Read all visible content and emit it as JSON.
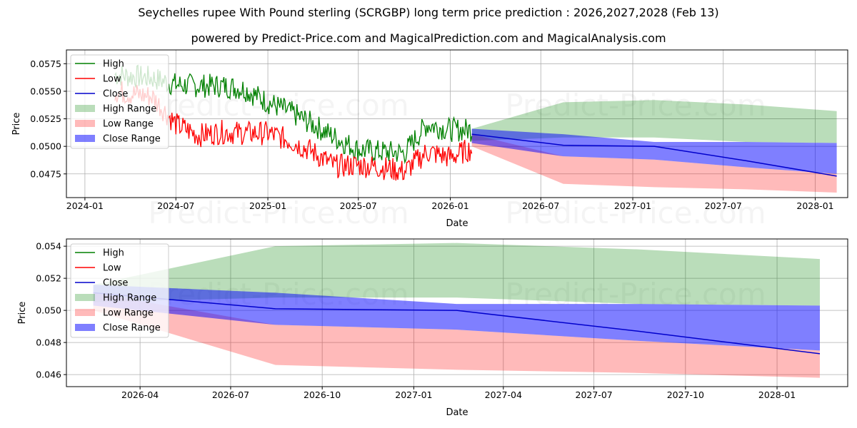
{
  "title": "Seychelles rupee With Pound sterling (SCRGBP) long term price prediction : 2026,2027,2028 (Feb 13)",
  "subtitle": "powered by Predict-Price.com and MagicalPrediction.com and MagicalAnalysis.com",
  "watermark": "Predict-Price.com",
  "colors": {
    "high": "#008000",
    "low": "#ff0000",
    "close": "#0000cc",
    "high_range": "#008000",
    "low_range": "#ff0000",
    "close_range": "#0000ff"
  },
  "chart_data": [
    {
      "type": "line",
      "title": "",
      "xlabel": "Date",
      "ylabel": "Price",
      "xlim": [
        "2023-11-25",
        "2028-03-06"
      ],
      "ylim": [
        0.04535,
        0.05875
      ],
      "x_ticks": [
        "2024-01",
        "2024-07",
        "2025-01",
        "2025-07",
        "2026-01",
        "2026-07",
        "2027-01",
        "2027-07",
        "2028-01"
      ],
      "y_ticks": [
        0.0475,
        0.05,
        0.0525,
        0.055,
        0.0575
      ],
      "y_tick_labels": [
        "0.0475",
        "0.0500",
        "0.0525",
        "0.0550",
        "0.0575"
      ],
      "grid": true,
      "legend_position": "top-left",
      "legend": [
        "High",
        "Low",
        "Close",
        "High Range",
        "Low Range",
        "Close Range"
      ],
      "history": {
        "dates": [
          "2024-03-01",
          "2024-05-15",
          "2024-07-01",
          "2024-08-15",
          "2024-10-01",
          "2024-11-15",
          "2025-01-01",
          "2025-02-15",
          "2025-04-01",
          "2025-05-15",
          "2025-07-01",
          "2025-08-15",
          "2025-10-01",
          "2025-11-15",
          "2026-01-01",
          "2026-02-13"
        ],
        "high": [
          0.0565,
          0.0562,
          0.0556,
          0.0555,
          0.0555,
          0.0552,
          0.054,
          0.0531,
          0.052,
          0.0508,
          0.0497,
          0.0495,
          0.0494,
          0.052,
          0.0515,
          0.0515
        ],
        "low": [
          0.055,
          0.0545,
          0.052,
          0.051,
          0.0513,
          0.0512,
          0.0512,
          0.0505,
          0.0495,
          0.0482,
          0.0483,
          0.0481,
          0.0477,
          0.0495,
          0.049,
          0.0498
        ]
      },
      "forecast": {
        "dates": [
          "2026-02-13",
          "2026-08-15",
          "2027-02-13",
          "2027-08-15",
          "2028-02-13"
        ],
        "close": [
          0.0511,
          0.0501,
          0.05,
          0.0487,
          0.0473
        ],
        "high_range": [
          [
            0.0505,
            0.0516
          ],
          [
            0.0508,
            0.054
          ],
          [
            0.0508,
            0.0542
          ],
          [
            0.0504,
            0.0538
          ],
          [
            0.0503,
            0.0532
          ]
        ],
        "low_range": [
          [
            0.05,
            0.0511
          ],
          [
            0.0466,
            0.0491
          ],
          [
            0.0463,
            0.0488
          ],
          [
            0.0461,
            0.0481
          ],
          [
            0.0458,
            0.0475
          ]
        ],
        "close_range": [
          [
            0.0503,
            0.0516
          ],
          [
            0.0491,
            0.0511
          ],
          [
            0.0488,
            0.0504
          ],
          [
            0.0481,
            0.0504
          ],
          [
            0.0475,
            0.0503
          ]
        ]
      }
    },
    {
      "type": "line",
      "title": "",
      "xlabel": "Date",
      "ylabel": "Price",
      "xlim": [
        "2026-01-17",
        "2028-03-12"
      ],
      "ylim": [
        0.04525,
        0.05445
      ],
      "x_ticks": [
        "2026-04",
        "2026-07",
        "2026-10",
        "2027-01",
        "2027-04",
        "2027-07",
        "2027-10",
        "2028-01"
      ],
      "y_ticks": [
        0.046,
        0.048,
        0.05,
        0.052,
        0.054
      ],
      "y_tick_labels": [
        "0.046",
        "0.048",
        "0.050",
        "0.052",
        "0.054"
      ],
      "grid": true,
      "legend_position": "top-left",
      "legend": [
        "High",
        "Low",
        "Close",
        "High Range",
        "Low Range",
        "Close Range"
      ],
      "forecast": {
        "dates": [
          "2026-02-13",
          "2026-08-15",
          "2027-02-13",
          "2027-08-15",
          "2028-02-13"
        ],
        "close": [
          0.0511,
          0.0501,
          0.05,
          0.0487,
          0.0473
        ],
        "high_range": [
          [
            0.0505,
            0.0516
          ],
          [
            0.0508,
            0.054
          ],
          [
            0.0508,
            0.0542
          ],
          [
            0.0504,
            0.0538
          ],
          [
            0.0503,
            0.0532
          ]
        ],
        "low_range": [
          [
            0.05,
            0.0511
          ],
          [
            0.0466,
            0.0491
          ],
          [
            0.0463,
            0.0488
          ],
          [
            0.0461,
            0.0481
          ],
          [
            0.0458,
            0.0475
          ]
        ],
        "close_range": [
          [
            0.0503,
            0.0516
          ],
          [
            0.0491,
            0.0511
          ],
          [
            0.0488,
            0.0504
          ],
          [
            0.0481,
            0.0504
          ],
          [
            0.0475,
            0.0503
          ]
        ]
      }
    }
  ]
}
